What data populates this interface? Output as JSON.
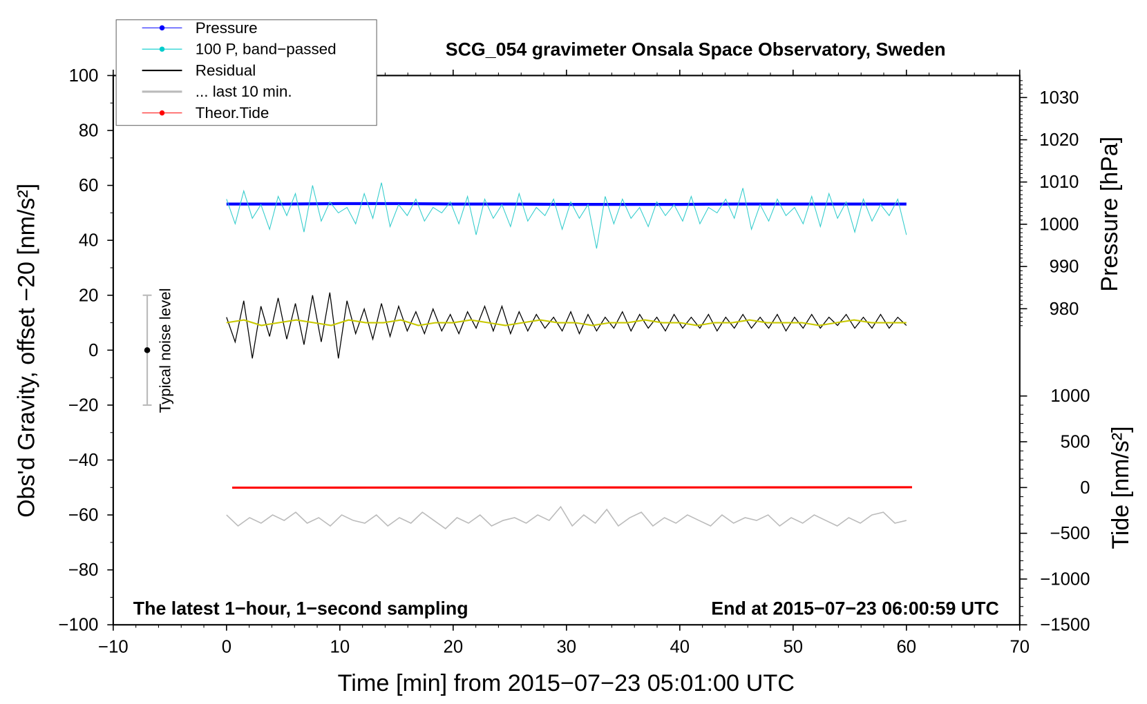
{
  "chart_data": {
    "type": "line",
    "title": "SCG_054 gravimeter Onsala Space Observatory, Sweden",
    "xlabel": "Time [min] from 2015−07−23 05:01:00 UTC",
    "ylabel": "Obs'd Gravity, offset −20 [nm/s²]",
    "y2label_pressure": "Pressure [hPa]",
    "y2label_tide": "Tide [nm/s²]",
    "xlim": [
      -10,
      70
    ],
    "ylim": [
      -100,
      100
    ],
    "pressure_axis_range": [
      980,
      1030
    ],
    "tide_axis_range": [
      -1500,
      1000
    ],
    "x_ticks": [
      "−10",
      "0",
      "10",
      "20",
      "30",
      "40",
      "50",
      "60",
      "70"
    ],
    "y_ticks": [
      "100",
      "80",
      "60",
      "40",
      "20",
      "0",
      "−20",
      "−40",
      "−60",
      "−80",
      "−100"
    ],
    "pressure_ticks": [
      "1030",
      "1020",
      "1010",
      "1000",
      "990",
      "980"
    ],
    "tide_ticks": [
      "1000",
      "500",
      "0",
      "−500",
      "−1000",
      "−1500"
    ],
    "annotation_left": "The latest 1−hour, 1−second sampling",
    "annotation_right": "End at 2015−07−23 06:00:59 UTC",
    "noise_label": "Typical noise level",
    "noise_bar": {
      "x": -7,
      "low": -20,
      "high": 20,
      "center": 0
    },
    "legend": {
      "placement": "top-left",
      "entries": [
        {
          "label": "Pressure",
          "color": "#0000ff"
        },
        {
          "label": "100 P, band−passed",
          "color": "#00cccc"
        },
        {
          "label": "Residual",
          "color": "#000000"
        },
        {
          "label": "... last 10 min.",
          "color": "#bbbbbb"
        },
        {
          "label": "Theor.Tide",
          "color": "#ff0000"
        }
      ]
    },
    "series": [
      {
        "name": "Pressure",
        "axis": "pressure",
        "x_range": [
          0,
          60
        ],
        "values": [
          1004.8,
          1004.8,
          1004.9,
          1004.9,
          1004.8,
          1004.8,
          1004.7,
          1004.7,
          1004.7,
          1004.8,
          1004.8,
          1004.8,
          1004.8
        ]
      },
      {
        "name": "100 P, band-passed",
        "axis": "gravity",
        "x_range": [
          0,
          60
        ],
        "values": [
          55,
          46,
          58,
          48,
          53,
          44,
          56,
          49,
          57,
          43,
          60,
          47,
          54,
          50,
          52,
          46,
          57,
          48,
          61,
          45,
          53,
          49,
          55,
          47,
          52,
          50,
          54,
          46,
          56,
          42,
          55,
          48,
          53,
          45,
          57,
          47,
          52,
          49,
          55,
          44,
          54,
          48,
          53,
          37,
          56,
          46,
          55,
          48,
          52,
          45,
          54,
          49,
          53,
          47,
          56,
          46,
          52,
          50,
          55,
          48,
          59,
          44,
          53,
          47,
          55,
          49,
          52,
          46,
          56,
          45,
          57,
          48,
          54,
          43,
          55,
          47,
          53,
          49,
          55,
          42
        ]
      },
      {
        "name": "Residual",
        "axis": "gravity",
        "x_range": [
          0,
          60
        ],
        "values": [
          12,
          3,
          18,
          -3,
          16,
          5,
          19,
          4,
          17,
          2,
          20,
          3,
          21,
          -3,
          18,
          6,
          15,
          4,
          17,
          5,
          16,
          7,
          14,
          6,
          15,
          7,
          13,
          6,
          14,
          8,
          16,
          7,
          16,
          6,
          14,
          7,
          13,
          8,
          12,
          7,
          14,
          6,
          13,
          7,
          12,
          8,
          14,
          7,
          13,
          8,
          12,
          7,
          13,
          8,
          12,
          8,
          13,
          7,
          12,
          8,
          13,
          8,
          12,
          8,
          13,
          7,
          12,
          8,
          13,
          8,
          12,
          9,
          13,
          8,
          12,
          8,
          13,
          8,
          12,
          9
        ]
      },
      {
        "name": "Residual smoothed",
        "axis": "gravity",
        "x_range": [
          0,
          60
        ],
        "values": [
          10,
          11,
          9,
          10,
          11,
          10,
          9,
          11,
          10,
          10,
          11,
          9,
          10,
          10,
          11,
          10,
          9,
          10,
          11,
          10,
          10,
          9,
          10,
          10,
          11,
          10,
          10,
          9,
          10,
          10,
          11,
          10,
          10,
          10,
          9,
          10,
          11,
          10,
          10,
          10
        ]
      },
      {
        "name": "... last 10 min.",
        "axis": "gravity",
        "x_range": [
          0,
          60
        ],
        "values": [
          -60,
          -64,
          -61,
          -63,
          -60,
          -62,
          -59,
          -63,
          -61,
          -64,
          -60,
          -62,
          -63,
          -60,
          -64,
          -61,
          -63,
          -59,
          -62,
          -65,
          -61,
          -63,
          -60,
          -64,
          -62,
          -61,
          -63,
          -60,
          -62,
          -57,
          -64,
          -60,
          -63,
          -58,
          -64,
          -61,
          -59,
          -64,
          -61,
          -63,
          -60,
          -62,
          -64,
          -60,
          -63,
          -61,
          -62,
          -60,
          -64,
          -61,
          -63,
          -60,
          -62,
          -64,
          -61,
          -63,
          -60,
          -59,
          -63,
          -62
        ]
      },
      {
        "name": "Theor.Tide",
        "axis": "tide",
        "x_range": [
          0.5,
          60.5
        ],
        "values": [
          -2,
          -1,
          0,
          1,
          2,
          3
        ]
      }
    ]
  }
}
